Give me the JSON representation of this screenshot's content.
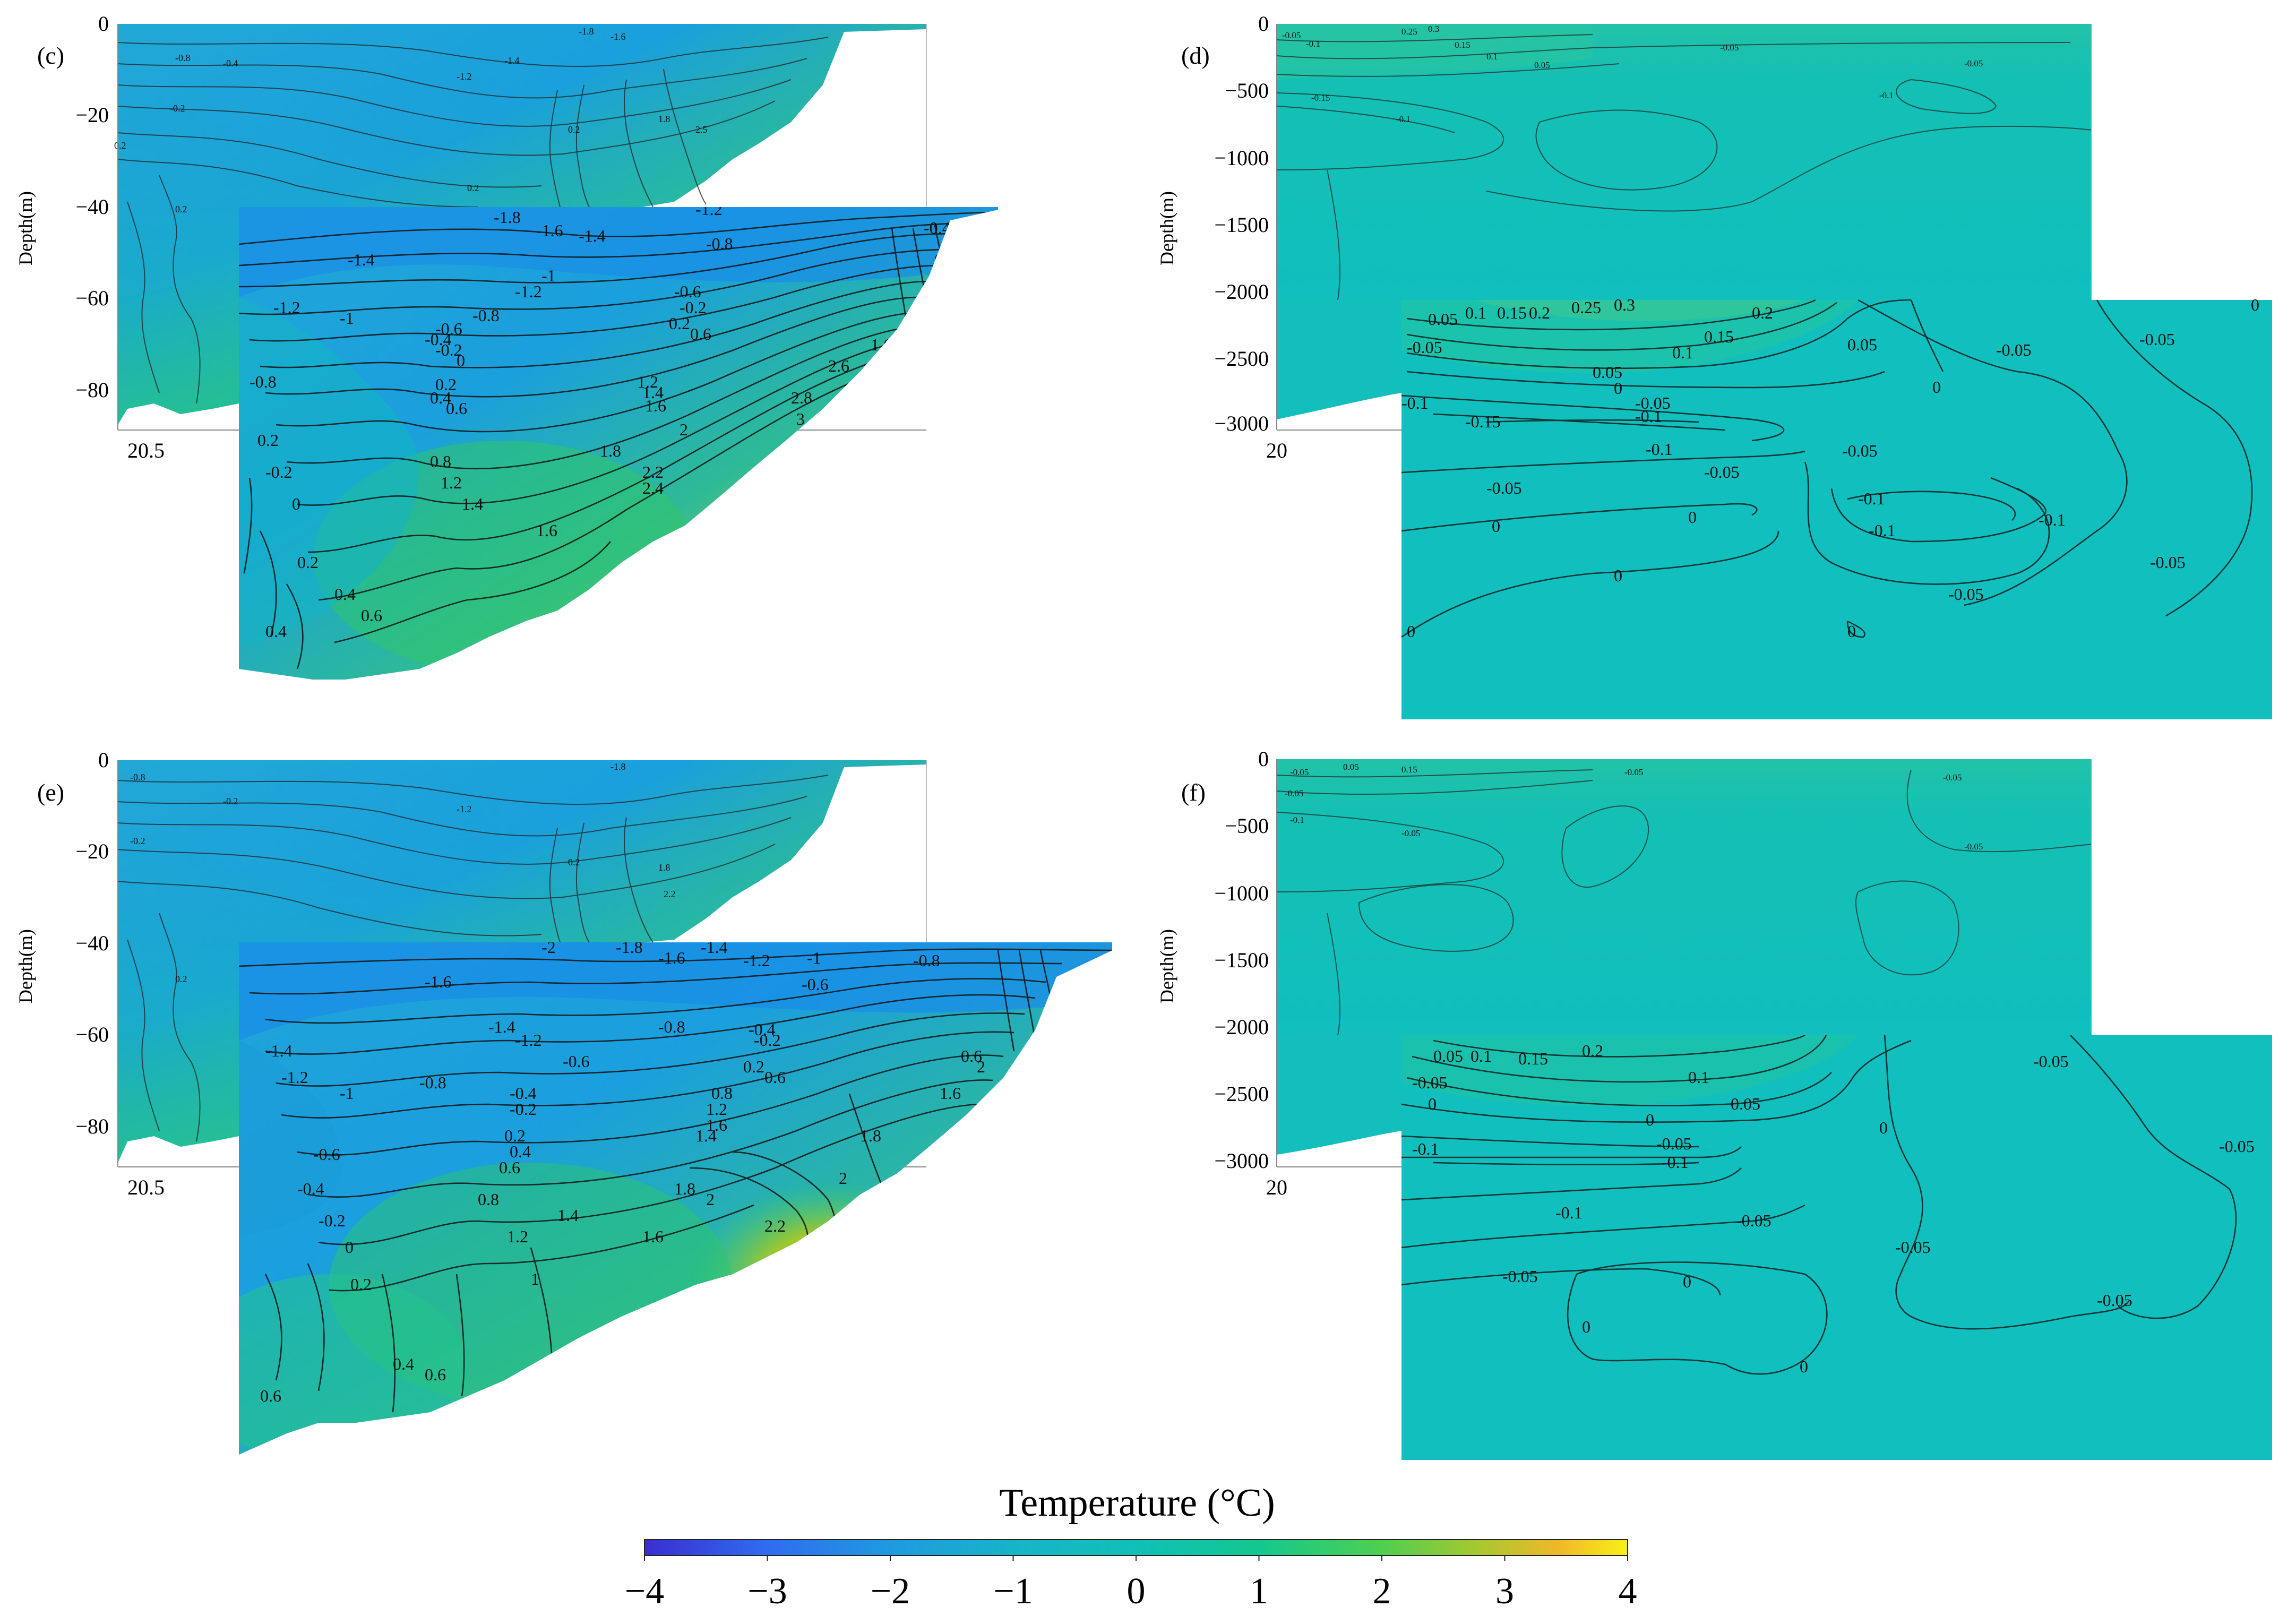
{
  "chart_data": [
    {
      "type": "contour",
      "panel": "(c)",
      "ylabel": "Depth(m)",
      "yticks": [
        0,
        -20,
        -40,
        -60,
        -80
      ],
      "ylim": [
        -87,
        0
      ],
      "xticks": [
        "20.5"
      ],
      "inset": "magnified view of upper-right section",
      "contour_levels_visible": [
        "-1.8",
        "-1.6",
        "-1.4",
        "-1.2",
        "-1",
        "-0.8",
        "-0.6",
        "-0.4",
        "-0.2",
        "0",
        "0.2",
        "0.4",
        "0.6",
        "0.8",
        "1",
        "1.2",
        "1.4",
        "1.6",
        "1.8",
        "2",
        "2.2",
        "2.4",
        "2.6",
        "2.8",
        "3"
      ],
      "value_range": [
        -2,
        3.2
      ]
    },
    {
      "type": "contour",
      "panel": "(d)",
      "ylabel": "Depth(m)",
      "yticks": [
        0,
        -500,
        -1000,
        -1500,
        -2000,
        -2500,
        -3000
      ],
      "ylim": [
        -3050,
        0
      ],
      "xticks": [
        "20"
      ],
      "inset": "magnified view of upper-right section",
      "contour_levels_visible": [
        "-0.15",
        "-0.1",
        "-0.05",
        "0",
        "0.05",
        "0.1",
        "0.15",
        "0.2",
        "0.25",
        "0.3"
      ],
      "value_range": [
        -0.15,
        0.3
      ]
    },
    {
      "type": "contour",
      "panel": "(e)",
      "ylabel": "Depth(m)",
      "yticks": [
        0,
        -20,
        -40,
        -60,
        -80
      ],
      "ylim": [
        -87,
        0
      ],
      "xticks": [
        "20.5"
      ],
      "inset": "magnified view of upper-right section",
      "contour_levels_visible": [
        "-2",
        "-1.8",
        "-1.6",
        "-1.4",
        "-1.2",
        "-1",
        "-0.8",
        "-0.6",
        "-0.4",
        "-0.2",
        "0",
        "0.2",
        "0.4",
        "0.6",
        "0.8",
        "1",
        "1.2",
        "1.4",
        "1.6",
        "1.8",
        "2",
        "2.2"
      ],
      "value_range": [
        -2.2,
        2.4
      ]
    },
    {
      "type": "contour",
      "panel": "(f)",
      "ylabel": "Depth(m)",
      "yticks": [
        0,
        -500,
        -1000,
        -1500,
        -2000,
        -2500,
        -3000
      ],
      "ylim": [
        -3050,
        0
      ],
      "xticks": [
        "20"
      ],
      "inset": "magnified view of upper-right section",
      "contour_levels_visible": [
        "-0.1",
        "-0.05",
        "0",
        "0.05",
        "0.1",
        "0.15",
        "0.2"
      ],
      "value_range": [
        -0.1,
        0.2
      ]
    }
  ],
  "colorbar": {
    "title": "Temperature (°C)",
    "range": [
      -4,
      4
    ],
    "ticks": [
      "−4",
      "−3",
      "−2",
      "−1",
      "0",
      "1",
      "2",
      "3",
      "4"
    ],
    "colors": [
      "#3a2ed0",
      "#2f6cf0",
      "#1f9ae0",
      "#16b4c8",
      "#10c0b8",
      "#12c88f",
      "#4fcf4f",
      "#a8c830",
      "#f0b828",
      "#f8f018"
    ]
  }
}
